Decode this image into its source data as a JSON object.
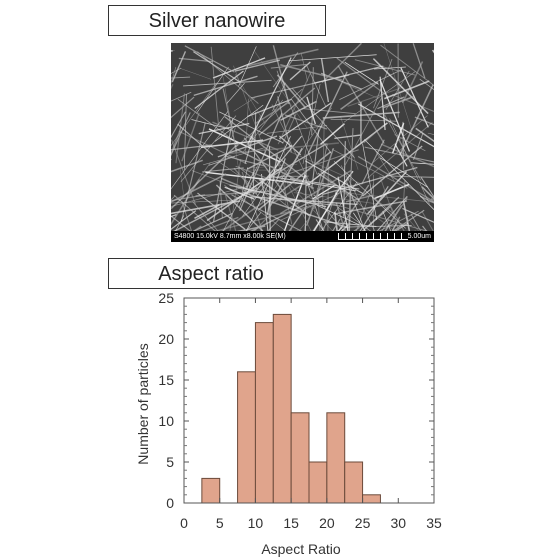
{
  "sem": {
    "title": "Silver nanowire",
    "info": "S4800 15.0kV 8.7mm x8.00k SE(M)",
    "scale_label": "5.00um"
  },
  "histogram": {
    "title": "Aspect ratio"
  },
  "chart_data": {
    "type": "bar",
    "xlabel": "Aspect Ratio",
    "ylabel": "Number of particles",
    "xlim": [
      0,
      35
    ],
    "ylim": [
      0,
      25
    ],
    "xticks": [
      0,
      5,
      10,
      15,
      20,
      25,
      30,
      35
    ],
    "yticks": [
      0,
      5,
      10,
      15,
      20,
      25
    ],
    "bins": [
      {
        "start": 2.5,
        "end": 5,
        "count": 3
      },
      {
        "start": 5,
        "end": 7.5,
        "count": 0
      },
      {
        "start": 7.5,
        "end": 10,
        "count": 16
      },
      {
        "start": 10,
        "end": 12.5,
        "count": 22
      },
      {
        "start": 12.5,
        "end": 15,
        "count": 23
      },
      {
        "start": 15,
        "end": 17.5,
        "count": 11
      },
      {
        "start": 17.5,
        "end": 20,
        "count": 5
      },
      {
        "start": 20,
        "end": 22.5,
        "count": 11
      },
      {
        "start": 22.5,
        "end": 25,
        "count": 5
      },
      {
        "start": 25,
        "end": 27.5,
        "count": 1
      }
    ],
    "bar_color": "#e0a48c",
    "bar_edge": "#6b4a3a"
  }
}
